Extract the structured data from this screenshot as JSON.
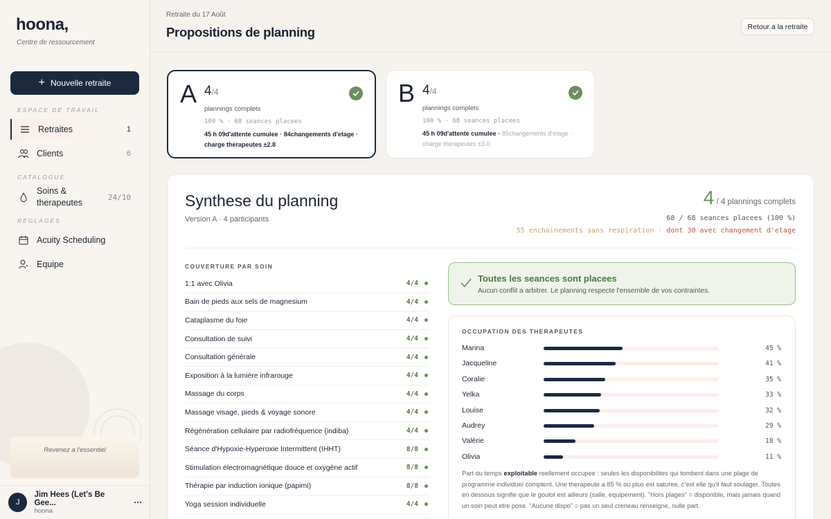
{
  "sidebar": {
    "logo": "hoona,",
    "tagline": "Centre de ressourcement",
    "new_button": "Nouvelle retraite",
    "sections": [
      {
        "label": "ESPACE DE TRAVAIL",
        "items": [
          {
            "label": "Retraites",
            "count": "1"
          },
          {
            "label": "Clients",
            "count": "6"
          }
        ]
      },
      {
        "label": "CATALOGUE",
        "items": [
          {
            "label": "Soins & therapeutes",
            "count": "24/10"
          }
        ]
      },
      {
        "label": "REGLAGES",
        "items": [
          {
            "label": "Acuity Scheduling"
          },
          {
            "label": "Equipe"
          }
        ]
      }
    ],
    "promo": "Revenez a l'essentiel",
    "user": {
      "initial": "J",
      "name": "Jim Hees (Let's Be Gee...",
      "org": "hoona"
    }
  },
  "header": {
    "breadcrumb": "Retraite du 17 Août",
    "title": "Propositions de planning",
    "back_button": "Retour a la retraite"
  },
  "options": [
    {
      "letter": "A",
      "score": "4",
      "out_of": "/4",
      "label": "plannings complets",
      "sessions": "100 % · 68 seances placees",
      "selected": true,
      "stats": [
        "45 h 09d'attente cumulee ·",
        "84changements d'etage ·",
        "charge therapeutes ±2.8"
      ]
    },
    {
      "letter": "B",
      "score": "4",
      "out_of": "/4",
      "label": "plannings complets",
      "sessions": "100 % · 68 seances placees",
      "selected": false,
      "stats": [
        "45 h 09d'attente cumulee ·",
        "85changements d'etage ·",
        "charge therapeutes ±3.0"
      ]
    }
  ],
  "synthesis": {
    "title": "Synthese du planning",
    "subtitle": "Version A · 4 participants",
    "score": "4",
    "score_label": "/ 4 plannings complets",
    "sessions": "68 / 68 seances placees (100 %)",
    "warning": "55 enchainements sans respiration ·",
    "warning_strong": "dont 30 avec changement d'etage"
  },
  "coverage": {
    "title": "COUVERTURE PAR SOIN",
    "rows": [
      {
        "name": "1:1 avec Olivia",
        "value": "4/4"
      },
      {
        "name": "Bain de pieds aux sels de magnesium",
        "value": "4/4"
      },
      {
        "name": "Cataplasme du foie",
        "value": "4/4"
      },
      {
        "name": "Consultation de suivi",
        "value": "4/4"
      },
      {
        "name": "Consultation générale",
        "value": "4/4"
      },
      {
        "name": "Exposition à la lumière infrarouge",
        "value": "4/4"
      },
      {
        "name": "Massage du corps",
        "value": "4/4"
      },
      {
        "name": "Massage visage, pieds & voyage sonore",
        "value": "4/4"
      },
      {
        "name": "Régénération cellulaire par radiofréquence (indiba)",
        "value": "4/4"
      },
      {
        "name": "Séance d'Hypoxie-Hyperoxie Intermittent (IHHT)",
        "value": "8/8"
      },
      {
        "name": "Stimulation électromagnétique douce et oxygène actif",
        "value": "8/8"
      },
      {
        "name": "Thérapie par induction ionique (papimi)",
        "value": "8/8"
      },
      {
        "name": "Yoga session individuelle",
        "value": "4/4"
      }
    ]
  },
  "alert": {
    "title": "Toutes les seances sont placees",
    "text": "Aucun conflit a arbitrer. Le planning respecte l'ensemble de vos contraintes."
  },
  "occupation": {
    "title": "OCCUPATION DES THERAPEUTES",
    "therapists": [
      {
        "name": "Marina",
        "value": 45,
        "value_label": "45 %"
      },
      {
        "name": "Jacqueline",
        "value": 41,
        "value_label": "41 %"
      },
      {
        "name": "Coralie",
        "value": 35,
        "value_label": "35 %"
      },
      {
        "name": "Yelka",
        "value": 33,
        "value_label": "33 %"
      },
      {
        "name": "Louise",
        "value": 32,
        "value_label": "32 %"
      },
      {
        "name": "Audrey",
        "value": 29,
        "value_label": "29 %"
      },
      {
        "name": "Valérie",
        "value": 18,
        "value_label": "18 %"
      },
      {
        "name": "Olivia",
        "value": 11,
        "value_label": "11 %"
      }
    ],
    "note_before": "Part du temps",
    "note_strong": "exploitable",
    "note_after": "reellement occupee : seules les disponibilites qui tombent dans une plage de programme individuel comptent. Une therapeute a 85 % ou plus est saturee, c'est elle qu'il faut soulager. Toutes en dessous signifie que le goulot est ailleurs (salle, equipement). \"Hors plages\" = disponible, mais jamais quand un soin peut etre pose. \"Aucune dispo\" = pas un seul creneau renseigne, nulle part."
  }
}
